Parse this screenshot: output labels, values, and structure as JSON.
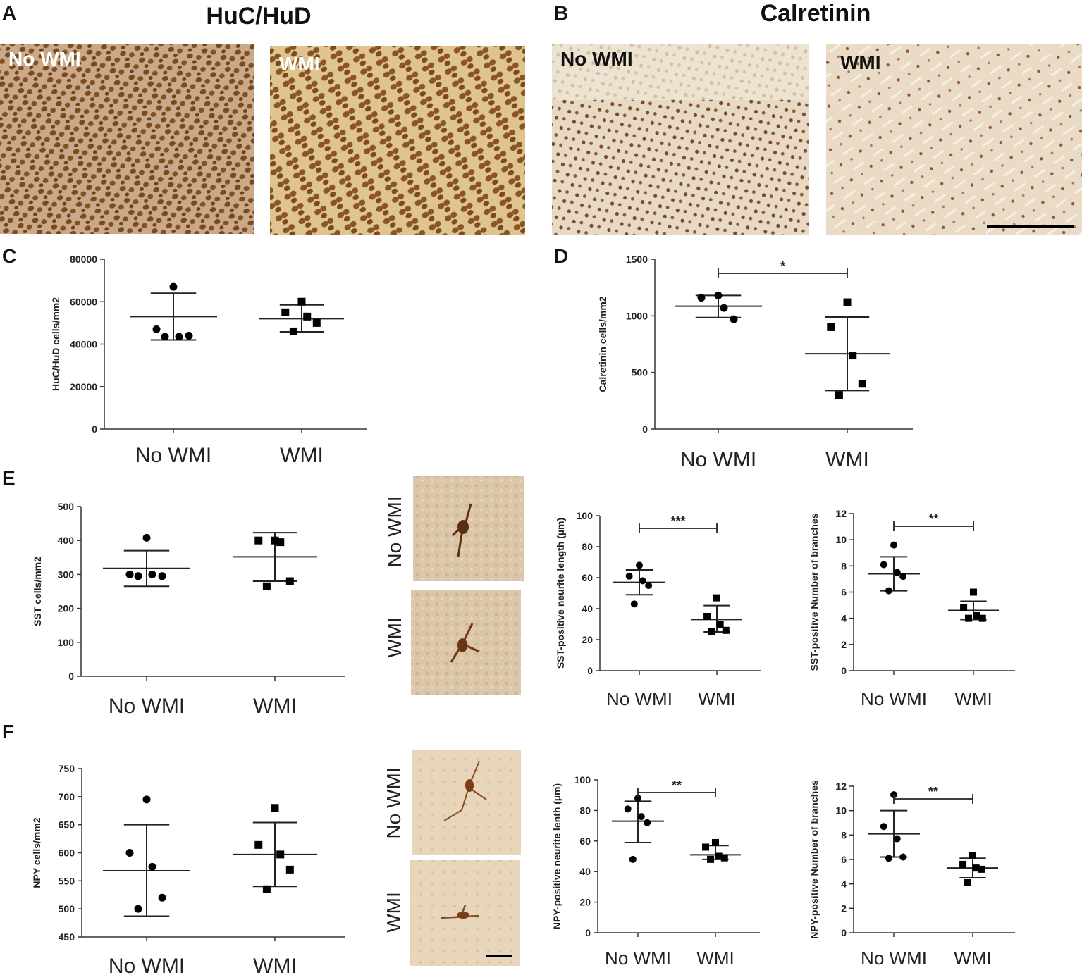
{
  "panel_labels": {
    "A": "A",
    "B": "B",
    "C": "C",
    "D": "D",
    "E": "E",
    "F": "F"
  },
  "titles": {
    "A": "HuC/HuD",
    "B": "Calretinin"
  },
  "image_labels": {
    "A_left": "No WMI",
    "A_right": "WMI",
    "B_left": "No WMI",
    "B_right": "WMI",
    "E_top": "No WMI",
    "E_bottom": "WMI",
    "F_top": "No WMI",
    "F_bottom": "WMI"
  },
  "colors": {
    "huc_bg": "#c9a98a",
    "huc_cell": "#7a4a1c",
    "huc_wmi_bg": "#dcc190",
    "huc_wmi_cell": "#8a5520",
    "calret_bg": "#e6d7c2",
    "calret_cell": "#7a4a2a",
    "ihc_bg": "#dcc6aa",
    "ihc_neuron": "#5c2e10",
    "marker": "#000000"
  },
  "chart_data": [
    {
      "id": "C",
      "type": "scatter",
      "ylabel": "HuC/HuD cells/mm2",
      "categories": [
        "No WMI",
        "WMI"
      ],
      "ylim": [
        0,
        80000
      ],
      "yticks": [
        0,
        20000,
        40000,
        60000,
        80000
      ],
      "series": [
        {
          "marker": "circle",
          "points": [
            67000,
            47000,
            43500,
            44000,
            43500
          ],
          "mean": 53000,
          "sd_low": 42000,
          "sd_high": 64000
        },
        {
          "marker": "square",
          "points": [
            60000,
            55000,
            53000,
            50000,
            46000
          ],
          "mean": 52000,
          "sd_low": 45800,
          "sd_high": 58500
        }
      ]
    },
    {
      "id": "D",
      "type": "scatter",
      "ylabel": "Calretinin cells/mm2",
      "categories": [
        "No WMI",
        "WMI"
      ],
      "ylim": [
        0,
        1500
      ],
      "yticks": [
        0,
        500,
        1000,
        1500
      ],
      "significance": "*",
      "series": [
        {
          "marker": "circle",
          "points": [
            1180,
            1160,
            1070,
            970
          ],
          "mean": 1085,
          "sd_low": 985,
          "sd_high": 1180
        },
        {
          "marker": "square",
          "points": [
            1120,
            900,
            650,
            400,
            300
          ],
          "mean": 665,
          "sd_low": 340,
          "sd_high": 990
        }
      ]
    },
    {
      "id": "E1",
      "type": "scatter",
      "ylabel": "SST cells/mm2",
      "categories": [
        "No WMI",
        "WMI"
      ],
      "ylim": [
        0,
        500
      ],
      "yticks": [
        0,
        100,
        200,
        300,
        400,
        500
      ],
      "series": [
        {
          "marker": "circle",
          "points": [
            408,
            300,
            300,
            295,
            295
          ],
          "mean": 318,
          "sd_low": 265,
          "sd_high": 370
        },
        {
          "marker": "square",
          "points": [
            400,
            400,
            395,
            280,
            265
          ],
          "mean": 352,
          "sd_low": 280,
          "sd_high": 423
        }
      ]
    },
    {
      "id": "E2",
      "type": "scatter",
      "ylabel": "SST-positive neurite length (µm)",
      "categories": [
        "No WMI",
        "WMI"
      ],
      "ylim": [
        0,
        100
      ],
      "yticks": [
        0,
        20,
        40,
        60,
        80,
        100
      ],
      "significance": "***",
      "series": [
        {
          "marker": "circle",
          "points": [
            68,
            61,
            58,
            55,
            43
          ],
          "mean": 57,
          "sd_low": 49,
          "sd_high": 65
        },
        {
          "marker": "square",
          "points": [
            47,
            35,
            30,
            26,
            25
          ],
          "mean": 33,
          "sd_low": 25,
          "sd_high": 42
        }
      ]
    },
    {
      "id": "E3",
      "type": "scatter",
      "ylabel": "SST-positive Number of branches",
      "categories": [
        "No WMI",
        "WMI"
      ],
      "ylim": [
        0,
        12
      ],
      "yticks": [
        0,
        2,
        4,
        6,
        8,
        10,
        12
      ],
      "significance": "**",
      "series": [
        {
          "marker": "circle",
          "points": [
            9.6,
            8.1,
            7.5,
            7.2,
            6.1
          ],
          "mean": 7.4,
          "sd_low": 6.1,
          "sd_high": 8.7
        },
        {
          "marker": "square",
          "points": [
            6,
            4.8,
            4.2,
            4,
            4
          ],
          "mean": 4.6,
          "sd_low": 3.9,
          "sd_high": 5.3
        }
      ]
    },
    {
      "id": "F1",
      "type": "scatter",
      "ylabel": "NPY cells/mm2",
      "categories": [
        "No WMI",
        "WMI"
      ],
      "ylim": [
        450,
        750
      ],
      "yticks": [
        450,
        500,
        550,
        600,
        650,
        700,
        750
      ],
      "series": [
        {
          "marker": "circle",
          "points": [
            695,
            600,
            575,
            520,
            500
          ],
          "mean": 568,
          "sd_low": 487,
          "sd_high": 650
        },
        {
          "marker": "square",
          "points": [
            680,
            614,
            597,
            570,
            535
          ],
          "mean": 597,
          "sd_low": 540,
          "sd_high": 654
        }
      ]
    },
    {
      "id": "F2",
      "type": "scatter",
      "ylabel": "NPY-positive neurite lenth (µm)",
      "categories": [
        "No WMI",
        "WMI"
      ],
      "ylim": [
        0,
        100
      ],
      "yticks": [
        0,
        20,
        40,
        60,
        80,
        100
      ],
      "significance": "**",
      "series": [
        {
          "marker": "circle",
          "points": [
            88,
            81,
            76,
            72,
            48
          ],
          "mean": 73,
          "sd_low": 59,
          "sd_high": 86
        },
        {
          "marker": "square",
          "points": [
            59,
            56,
            50,
            49,
            48
          ],
          "mean": 51,
          "sd_low": 48,
          "sd_high": 57
        }
      ]
    },
    {
      "id": "F3",
      "type": "scatter",
      "ylabel": "NPY-positive Number of branches",
      "categories": [
        "No WMI",
        "WMI"
      ],
      "ylim": [
        0,
        12
      ],
      "yticks": [
        0,
        2,
        4,
        6,
        8,
        10,
        12
      ],
      "significance": "**",
      "series": [
        {
          "marker": "circle",
          "points": [
            11.3,
            8.7,
            7.7,
            6.2,
            6.1
          ],
          "mean": 8.1,
          "sd_low": 6.2,
          "sd_high": 10
        },
        {
          "marker": "square",
          "points": [
            6.3,
            5.6,
            5.3,
            5.2,
            4.1
          ],
          "mean": 5.3,
          "sd_low": 4.5,
          "sd_high": 6.1
        }
      ]
    }
  ]
}
